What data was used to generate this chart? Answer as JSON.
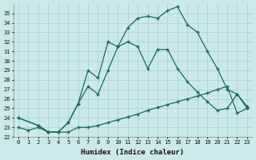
{
  "xlabel": "Humidex (Indice chaleur)",
  "bg_color": "#cce8ea",
  "grid_color": "#aad4d6",
  "line_color": "#1a6b5a",
  "xlim": [
    -0.5,
    23.5
  ],
  "ylim": [
    22,
    36
  ],
  "xticks": [
    0,
    1,
    2,
    3,
    4,
    5,
    6,
    7,
    8,
    9,
    10,
    11,
    12,
    13,
    14,
    15,
    16,
    17,
    18,
    19,
    20,
    21,
    22,
    23
  ],
  "yticks": [
    22,
    23,
    24,
    25,
    26,
    27,
    28,
    29,
    30,
    31,
    32,
    33,
    34,
    35
  ],
  "line1_x": [
    0,
    1,
    2,
    3,
    4,
    5,
    6,
    7,
    8,
    9,
    10,
    11,
    12,
    13,
    14,
    15,
    16,
    17,
    18,
    19,
    20,
    21,
    22,
    23
  ],
  "line1_y": [
    23.0,
    22.7,
    23.0,
    22.5,
    22.5,
    22.5,
    23.0,
    23.0,
    23.2,
    23.5,
    23.8,
    24.1,
    24.4,
    24.8,
    25.1,
    25.4,
    25.7,
    26.0,
    26.3,
    26.6,
    27.0,
    27.3,
    24.5,
    25.0
  ],
  "line2_x": [
    0,
    2,
    3,
    4,
    5,
    6,
    7,
    8,
    9,
    10,
    11,
    12,
    13,
    14,
    15,
    16,
    17,
    18,
    19,
    20,
    21,
    22,
    23
  ],
  "line2_y": [
    24.0,
    23.2,
    22.5,
    22.5,
    23.5,
    25.5,
    27.3,
    26.5,
    29.0,
    31.5,
    32.0,
    31.5,
    29.2,
    31.2,
    31.2,
    29.2,
    27.8,
    26.7,
    25.7,
    24.8,
    25.0,
    26.5,
    25.2
  ],
  "line3_x": [
    0,
    2,
    3,
    4,
    5,
    6,
    7,
    8,
    9,
    10,
    11,
    12,
    13,
    14,
    15,
    16,
    17,
    18,
    19,
    20,
    21,
    22,
    23
  ],
  "line3_y": [
    24.0,
    23.2,
    22.5,
    22.5,
    23.5,
    25.5,
    29.0,
    28.2,
    32.0,
    31.5,
    33.5,
    34.5,
    34.7,
    34.5,
    35.3,
    35.7,
    33.8,
    33.0,
    31.0,
    29.2,
    27.0,
    26.5,
    25.0
  ]
}
